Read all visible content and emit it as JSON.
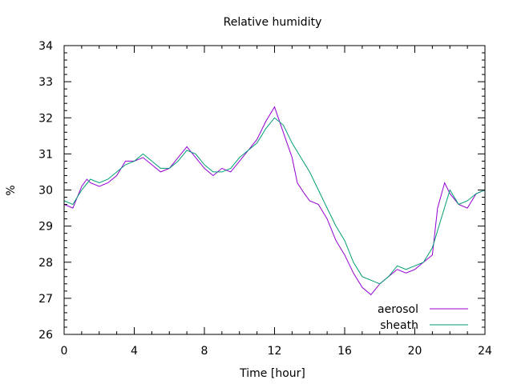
{
  "chart_data": {
    "type": "line",
    "title": "Relative humidity",
    "xlabel": "Time [hour]",
    "ylabel": "%",
    "xlim": [
      0,
      24
    ],
    "ylim": [
      26,
      34
    ],
    "x_ticks": [
      0,
      4,
      8,
      12,
      16,
      20,
      24
    ],
    "y_ticks": [
      26,
      27,
      28,
      29,
      30,
      31,
      32,
      33,
      34
    ],
    "grid": false,
    "legend_position": "bottom-right",
    "series": [
      {
        "name": "aerosol",
        "color": "#9400d3",
        "points": [
          [
            0,
            29.6
          ],
          [
            0.5,
            29.5
          ],
          [
            1,
            30.1
          ],
          [
            1.3,
            30.3
          ],
          [
            1.5,
            30.2
          ],
          [
            2,
            30.1
          ],
          [
            2.5,
            30.2
          ],
          [
            3,
            30.4
          ],
          [
            3.5,
            30.8
          ],
          [
            4,
            30.8
          ],
          [
            4.5,
            30.9
          ],
          [
            5,
            30.7
          ],
          [
            5.5,
            30.5
          ],
          [
            6,
            30.6
          ],
          [
            6.5,
            30.9
          ],
          [
            7,
            31.2
          ],
          [
            7.5,
            30.9
          ],
          [
            8,
            30.6
          ],
          [
            8.5,
            30.4
          ],
          [
            9,
            30.6
          ],
          [
            9.5,
            30.5
          ],
          [
            10,
            30.8
          ],
          [
            10.5,
            31.1
          ],
          [
            11,
            31.4
          ],
          [
            11.5,
            31.9
          ],
          [
            12,
            32.3
          ],
          [
            12.5,
            31.6
          ],
          [
            13,
            30.9
          ],
          [
            13.3,
            30.2
          ],
          [
            13.7,
            29.9
          ],
          [
            14,
            29.7
          ],
          [
            14.5,
            29.6
          ],
          [
            15,
            29.2
          ],
          [
            15.5,
            28.6
          ],
          [
            16,
            28.2
          ],
          [
            16.5,
            27.7
          ],
          [
            17,
            27.3
          ],
          [
            17.5,
            27.1
          ],
          [
            18,
            27.4
          ],
          [
            18.5,
            27.6
          ],
          [
            19,
            27.8
          ],
          [
            19.5,
            27.7
          ],
          [
            20,
            27.8
          ],
          [
            20.5,
            28.0
          ],
          [
            21,
            28.2
          ],
          [
            21.3,
            29.5
          ],
          [
            21.7,
            30.2
          ],
          [
            22,
            29.9
          ],
          [
            22.5,
            29.6
          ],
          [
            23,
            29.5
          ],
          [
            23.5,
            29.9
          ],
          [
            24,
            30.0
          ]
        ]
      },
      {
        "name": "sheath",
        "color": "#009e73",
        "points": [
          [
            0,
            29.7
          ],
          [
            0.5,
            29.6
          ],
          [
            1,
            30.0
          ],
          [
            1.5,
            30.3
          ],
          [
            2,
            30.2
          ],
          [
            2.5,
            30.3
          ],
          [
            3,
            30.5
          ],
          [
            3.5,
            30.7
          ],
          [
            4,
            30.8
          ],
          [
            4.5,
            31.0
          ],
          [
            5,
            30.8
          ],
          [
            5.5,
            30.6
          ],
          [
            6,
            30.6
          ],
          [
            6.5,
            30.8
          ],
          [
            7,
            31.1
          ],
          [
            7.5,
            31.0
          ],
          [
            8,
            30.7
          ],
          [
            8.5,
            30.5
          ],
          [
            9,
            30.5
          ],
          [
            9.5,
            30.6
          ],
          [
            10,
            30.9
          ],
          [
            10.5,
            31.1
          ],
          [
            11,
            31.3
          ],
          [
            11.5,
            31.7
          ],
          [
            12,
            32.0
          ],
          [
            12.5,
            31.8
          ],
          [
            13,
            31.3
          ],
          [
            13.5,
            30.9
          ],
          [
            14,
            30.5
          ],
          [
            14.5,
            30.0
          ],
          [
            15,
            29.5
          ],
          [
            15.5,
            29.0
          ],
          [
            16,
            28.6
          ],
          [
            16.5,
            28.0
          ],
          [
            17,
            27.6
          ],
          [
            17.5,
            27.5
          ],
          [
            18,
            27.4
          ],
          [
            18.5,
            27.6
          ],
          [
            19,
            27.9
          ],
          [
            19.5,
            27.8
          ],
          [
            20,
            27.9
          ],
          [
            20.5,
            28.0
          ],
          [
            21,
            28.4
          ],
          [
            21.5,
            29.2
          ],
          [
            22,
            30.0
          ],
          [
            22.5,
            29.6
          ],
          [
            23,
            29.7
          ],
          [
            23.5,
            29.9
          ],
          [
            24,
            30.0
          ]
        ]
      }
    ]
  }
}
